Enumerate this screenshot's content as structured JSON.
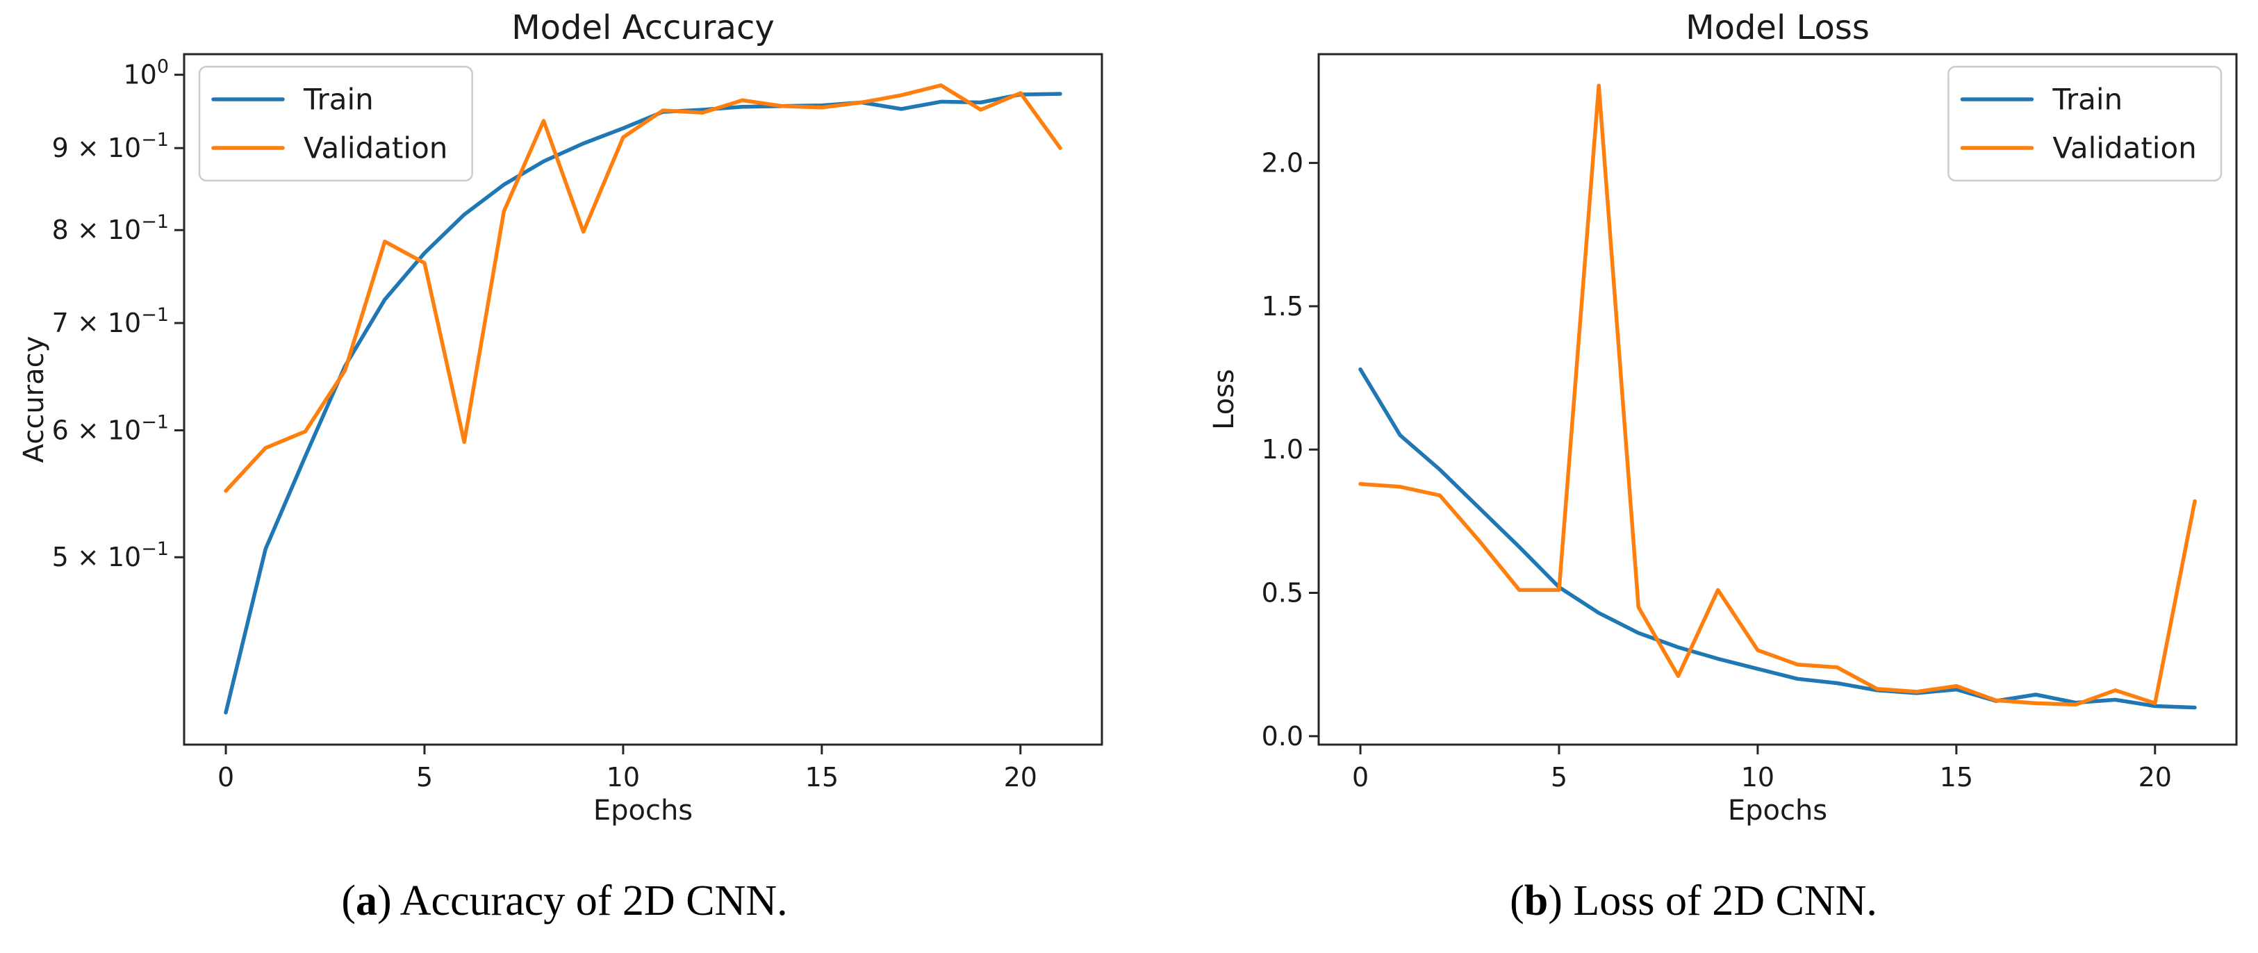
{
  "figure": {
    "background": "#ffffff",
    "captions": [
      {
        "open": "(",
        "letter": "a",
        "close": ")",
        "text": " Accuracy of 2D CNN."
      },
      {
        "open": "(",
        "letter": "b",
        "close": ")",
        "text": " Loss of 2D CNN."
      }
    ]
  },
  "colors": {
    "train": "#1f77b4",
    "validation": "#ff7f0e",
    "text": "#1a1a1a",
    "spine": "#262626",
    "legend_border": "#cccccc",
    "legend_bg": "#ffffff"
  },
  "chart_data": [
    {
      "type": "line",
      "title": "Model Accuracy",
      "xlabel": "Epochs",
      "ylabel": "Accuracy",
      "yscale": "log",
      "grid": false,
      "x": [
        0,
        1,
        2,
        3,
        4,
        5,
        6,
        7,
        8,
        9,
        10,
        11,
        12,
        13,
        14,
        15,
        16,
        17,
        18,
        19,
        20,
        21
      ],
      "series": [
        {
          "name": "Train",
          "color_key": "train",
          "values": [
            0.4,
            0.506,
            0.578,
            0.658,
            0.724,
            0.774,
            0.818,
            0.854,
            0.883,
            0.906,
            0.926,
            0.948,
            0.951,
            0.955,
            0.956,
            0.957,
            0.961,
            0.952,
            0.962,
            0.961,
            0.972,
            0.973
          ]
        },
        {
          "name": "Validation",
          "color_key": "validation",
          "values": [
            0.55,
            0.585,
            0.599,
            0.654,
            0.787,
            0.763,
            0.59,
            0.822,
            0.936,
            0.798,
            0.914,
            0.95,
            0.947,
            0.964,
            0.956,
            0.954,
            0.961,
            0.971,
            0.985,
            0.951,
            0.974,
            0.9
          ]
        }
      ],
      "xlim": [
        -1.05,
        22.05
      ],
      "ylim": [
        0.382,
        1.03
      ],
      "xticks": [
        {
          "value": 0,
          "label": "0"
        },
        {
          "value": 5,
          "label": "5"
        },
        {
          "value": 10,
          "label": "10"
        },
        {
          "value": 15,
          "label": "15"
        },
        {
          "value": 20,
          "label": "20"
        }
      ],
      "yticks": [
        {
          "value": 1.0,
          "base": "10",
          "sup": "0"
        },
        {
          "value": 0.9,
          "base": "9 × 10",
          "sup": "−1"
        },
        {
          "value": 0.8,
          "base": "8 × 10",
          "sup": "−1"
        },
        {
          "value": 0.7,
          "base": "7 × 10",
          "sup": "−1"
        },
        {
          "value": 0.6,
          "base": "6 × 10",
          "sup": "−1"
        },
        {
          "value": 0.5,
          "base": "5 × 10",
          "sup": "−1"
        }
      ],
      "legend": {
        "loc": "upper-left",
        "entries": [
          "Train",
          "Validation"
        ]
      }
    },
    {
      "type": "line",
      "title": "Model Loss",
      "xlabel": "Epochs",
      "ylabel": "Loss",
      "yscale": "linear",
      "grid": false,
      "x": [
        0,
        1,
        2,
        3,
        4,
        5,
        6,
        7,
        8,
        9,
        10,
        11,
        12,
        13,
        14,
        15,
        16,
        17,
        18,
        19,
        20,
        21
      ],
      "series": [
        {
          "name": "Train",
          "color_key": "train",
          "values": [
            1.28,
            1.05,
            0.93,
            0.795,
            0.66,
            0.52,
            0.43,
            0.36,
            0.31,
            0.27,
            0.235,
            0.2,
            0.185,
            0.16,
            0.15,
            0.163,
            0.123,
            0.145,
            0.117,
            0.127,
            0.105,
            0.1
          ]
        },
        {
          "name": "Validation",
          "color_key": "validation",
          "values": [
            0.88,
            0.87,
            0.84,
            0.68,
            0.51,
            0.51,
            2.27,
            0.45,
            0.21,
            0.51,
            0.3,
            0.25,
            0.24,
            0.165,
            0.155,
            0.175,
            0.125,
            0.115,
            0.11,
            0.16,
            0.115,
            0.82
          ]
        }
      ],
      "xlim": [
        -1.05,
        22.05
      ],
      "ylim": [
        -0.0295,
        2.3795
      ],
      "xticks": [
        {
          "value": 0,
          "label": "0"
        },
        {
          "value": 5,
          "label": "5"
        },
        {
          "value": 10,
          "label": "10"
        },
        {
          "value": 15,
          "label": "15"
        },
        {
          "value": 20,
          "label": "20"
        }
      ],
      "yticks": [
        {
          "value": 0.0,
          "label": "0.0"
        },
        {
          "value": 0.5,
          "label": "0.5"
        },
        {
          "value": 1.0,
          "label": "1.0"
        },
        {
          "value": 1.5,
          "label": "1.5"
        },
        {
          "value": 2.0,
          "label": "2.0"
        }
      ],
      "legend": {
        "loc": "upper-right",
        "entries": [
          "Train",
          "Validation"
        ]
      }
    }
  ]
}
